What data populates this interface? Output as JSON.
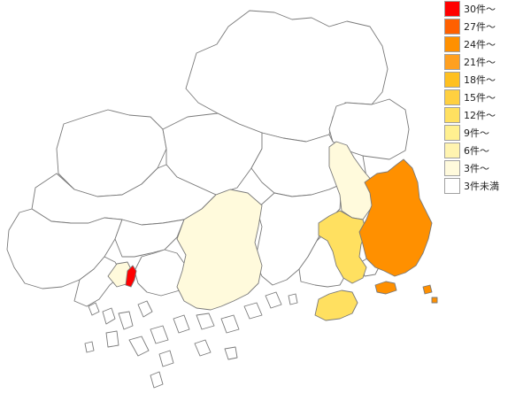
{
  "legend": {
    "items": [
      {
        "label": "30件～",
        "color": "#ff0000"
      },
      {
        "label": "27件～",
        "color": "#ff6000"
      },
      {
        "label": "24件～",
        "color": "#ff9000"
      },
      {
        "label": "21件～",
        "color": "#ffa020"
      },
      {
        "label": "18件～",
        "color": "#ffc020"
      },
      {
        "label": "15件～",
        "color": "#ffd040"
      },
      {
        "label": "12件～",
        "color": "#ffe060"
      },
      {
        "label": "9件～",
        "color": "#fff090"
      },
      {
        "label": "6件～",
        "color": "#fff4b0"
      },
      {
        "label": "3件～",
        "color": "#fffadc"
      },
      {
        "label": "3件未満",
        "color": "#ffffff"
      }
    ]
  },
  "regions": [
    {
      "id": "north-central",
      "level": 0
    },
    {
      "id": "north-east",
      "level": 0
    },
    {
      "id": "north-east-upper",
      "level": 0
    },
    {
      "id": "north-center-small",
      "level": 0
    },
    {
      "id": "north-west",
      "level": 0
    },
    {
      "id": "west-upper",
      "level": 0
    },
    {
      "id": "west-lower",
      "level": 0
    },
    {
      "id": "west-coast",
      "level": 0
    },
    {
      "id": "center-mid",
      "level": 0
    },
    {
      "id": "center-upper",
      "level": 0
    },
    {
      "id": "center-east-white",
      "level": 0
    },
    {
      "id": "shobara-white",
      "level": 0
    },
    {
      "id": "mid-west-white",
      "level": 0
    },
    {
      "id": "east-white-lower",
      "level": 0
    },
    {
      "id": "east-pale",
      "level": 9
    },
    {
      "id": "center-pale",
      "level": 9
    },
    {
      "id": "west-small-pale",
      "level": 9
    },
    {
      "id": "east-light",
      "level": 6
    },
    {
      "id": "island-light",
      "level": 6
    },
    {
      "id": "east-orange",
      "level": 2
    },
    {
      "id": "east-orange-isle-1",
      "level": 2
    },
    {
      "id": "east-orange-isle-2",
      "level": 2
    },
    {
      "id": "east-orange-isle-3",
      "level": 2
    },
    {
      "id": "city-red",
      "level": 0
    }
  ]
}
